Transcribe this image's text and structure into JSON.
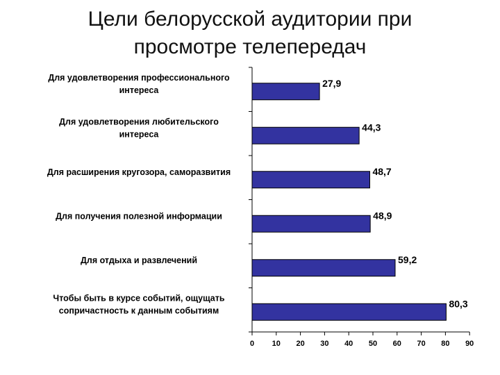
{
  "header": {
    "title_line1": "Цели белорусской аудитории при",
    "title_line2": "просмотре телепередач"
  },
  "chart_data": {
    "type": "bar",
    "orientation": "horizontal",
    "categories": [
      [
        "Для удовлетворения профессионального",
        "интереса"
      ],
      [
        "Для удовлетворения любительского",
        "интереса"
      ],
      [
        "Для расширения кругозора, саморазвития"
      ],
      [
        "Для получения полезной информации"
      ],
      [
        "Для отдыха и развлечений"
      ],
      [
        "Чтобы быть в курсе событий, ощущать",
        "сопричастность к данным событиям"
      ]
    ],
    "values": [
      27.9,
      44.3,
      48.7,
      48.9,
      59.2,
      80.3
    ],
    "value_labels": [
      "27,9",
      "44,3",
      "48,7",
      "48,9",
      "59,2",
      "80,3"
    ],
    "xlim": [
      0,
      90
    ],
    "xticks": [
      0,
      10,
      20,
      30,
      40,
      50,
      60,
      70,
      80,
      90
    ],
    "grid": false,
    "legend": "none",
    "colors": {
      "bar_fill": "#3333a0",
      "bar_stroke": "#000000",
      "axis": "#000000"
    }
  }
}
